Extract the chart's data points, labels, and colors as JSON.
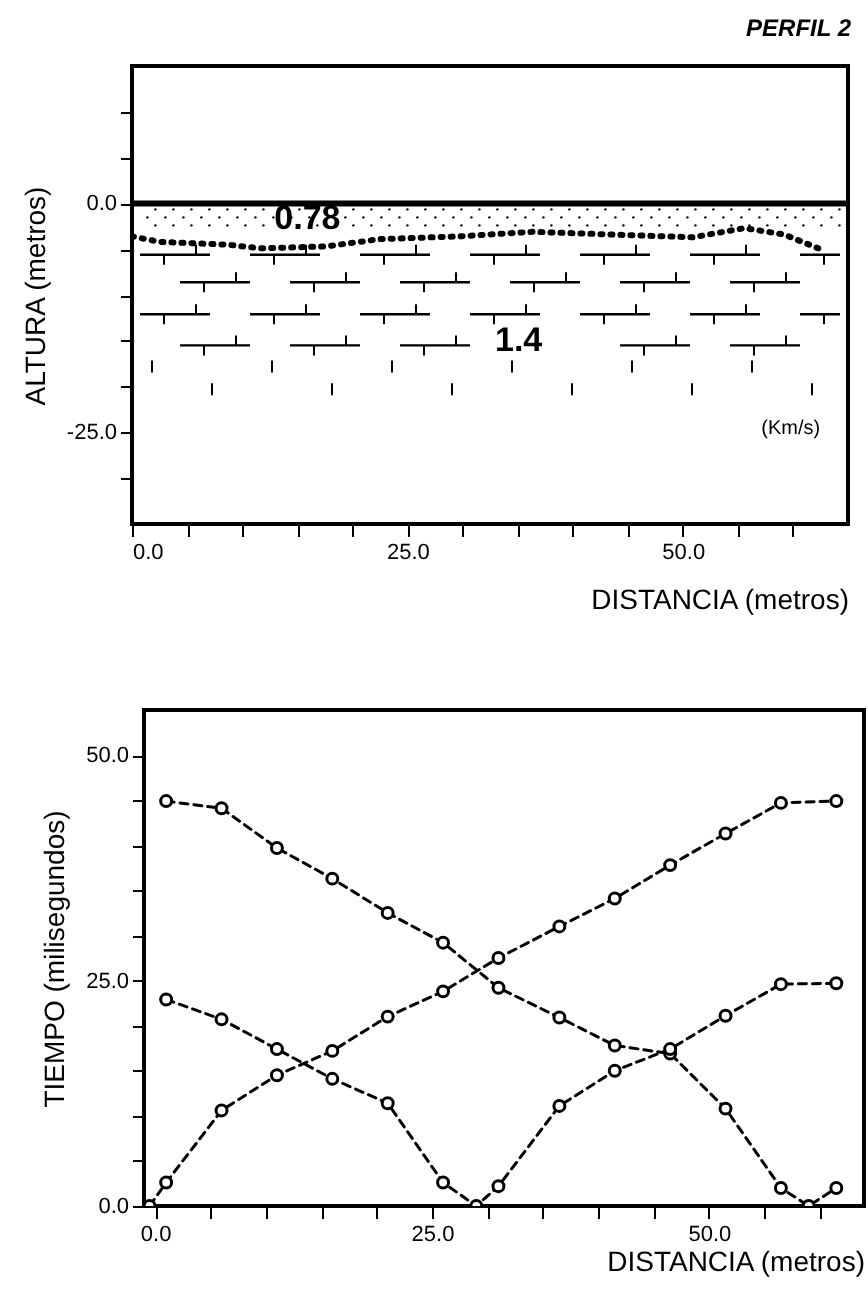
{
  "chart_data": [
    {
      "type": "line",
      "title": "PERFIL 2",
      "xlabel": "DISTANCIA (metros)",
      "ylabel": "ALTURA (metros)",
      "xlim": [
        0,
        65
      ],
      "ylim": [
        -35,
        15
      ],
      "xticks": [
        {
          "value": 0,
          "label": "0.0"
        },
        {
          "value": 5,
          "label": null
        },
        {
          "value": 10,
          "label": null
        },
        {
          "value": 15,
          "label": null
        },
        {
          "value": 20,
          "label": null
        },
        {
          "value": 25,
          "label": "25.0"
        },
        {
          "value": 30,
          "label": null
        },
        {
          "value": 35,
          "label": null
        },
        {
          "value": 40,
          "label": null
        },
        {
          "value": 45,
          "label": null
        },
        {
          "value": 50,
          "label": "50.0"
        },
        {
          "value": 55,
          "label": null
        },
        {
          "value": 60,
          "label": null
        }
      ],
      "yticks": [
        {
          "value": 10,
          "label": null
        },
        {
          "value": 5,
          "label": null
        },
        {
          "value": 0,
          "label": "0.0"
        },
        {
          "value": -5,
          "label": null
        },
        {
          "value": -10,
          "label": null
        },
        {
          "value": -15,
          "label": null
        },
        {
          "value": -20,
          "label": null
        },
        {
          "value": -25,
          "label": "-25.0"
        },
        {
          "value": -30,
          "label": null
        }
      ],
      "series": [
        {
          "color": "#000000",
          "x": [
            0,
            2.5,
            8.6,
            11.6,
            17.6,
            22.5,
            29.7,
            36.4,
            43.6,
            50.9,
            55.6,
            59.2,
            62.3
          ],
          "values": [
            -3.6,
            -4.2,
            -4.5,
            -4.9,
            -4.7,
            -3.9,
            -3.6,
            -3.1,
            -3.4,
            -3.7,
            -2.7,
            -3.4,
            -4.9
          ]
        }
      ],
      "marker": "none",
      "line_style": "dotted",
      "ref_lines": [
        {
          "axis": "y",
          "value": 0,
          "color": "#000000"
        }
      ],
      "annotations": [
        "0.78",
        "1.4",
        "(Km/s)"
      ]
    },
    {
      "type": "line",
      "xlabel": "DISTANCIA (metros)",
      "ylabel": "TIEMPO (milisegundos)",
      "xlim": [
        -1,
        64
      ],
      "ylim": [
        0,
        55
      ],
      "xticks": [
        {
          "value": 0,
          "label": "0.0"
        },
        {
          "value": 5,
          "label": null
        },
        {
          "value": 10,
          "label": null
        },
        {
          "value": 15,
          "label": null
        },
        {
          "value": 20,
          "label": null
        },
        {
          "value": 25,
          "label": "25.0"
        },
        {
          "value": 30,
          "label": null
        },
        {
          "value": 35,
          "label": null
        },
        {
          "value": 40,
          "label": null
        },
        {
          "value": 45,
          "label": null
        },
        {
          "value": 50,
          "label": "50.0"
        },
        {
          "value": 55,
          "label": null
        },
        {
          "value": 60,
          "label": null
        }
      ],
      "yticks": [
        {
          "value": 0,
          "label": "0.0"
        },
        {
          "value": 5,
          "label": null
        },
        {
          "value": 10,
          "label": null
        },
        {
          "value": 15,
          "label": null
        },
        {
          "value": 20,
          "label": null
        },
        {
          "value": 25,
          "label": "25.0"
        },
        {
          "value": 30,
          "label": null
        },
        {
          "value": 35,
          "label": null
        },
        {
          "value": 40,
          "label": null
        },
        {
          "value": 45,
          "label": null
        },
        {
          "value": 50,
          "label": "50.0"
        }
      ],
      "series": [
        {
          "color": "#000000",
          "x": [
            1,
            6,
            11,
            16,
            21,
            26,
            31,
            36.5,
            41.5,
            46.5,
            51.5,
            56.5,
            59,
            61.5
          ],
          "values": [
            44.9,
            44.1,
            39.7,
            36.3,
            32.5,
            29.2,
            24.2,
            20.9,
            17.8,
            16.9,
            10.8,
            2,
            0,
            2
          ]
        },
        {
          "color": "#000000",
          "x": [
            -0.5,
            1,
            6,
            11,
            16,
            21,
            26,
            31,
            36.5,
            41.5,
            46.5,
            51.5,
            56.5,
            61.5
          ],
          "values": [
            0,
            2.6,
            10.6,
            14.5,
            17.2,
            21,
            23.8,
            27.5,
            31,
            34.1,
            37.8,
            41.3,
            44.7,
            44.9
          ]
        },
        {
          "color": "#000000",
          "x": [
            1,
            6,
            11,
            16,
            21,
            26,
            29,
            31,
            36.5,
            41.5,
            46.5,
            51.5,
            56.5,
            61.5
          ],
          "values": [
            22.9,
            20.7,
            17.4,
            14.1,
            11.4,
            2.6,
            0,
            2.2,
            11.1,
            15,
            17.4,
            21.1,
            24.6,
            24.7
          ]
        }
      ],
      "marker": "circle",
      "line_style": "dashed"
    }
  ]
}
